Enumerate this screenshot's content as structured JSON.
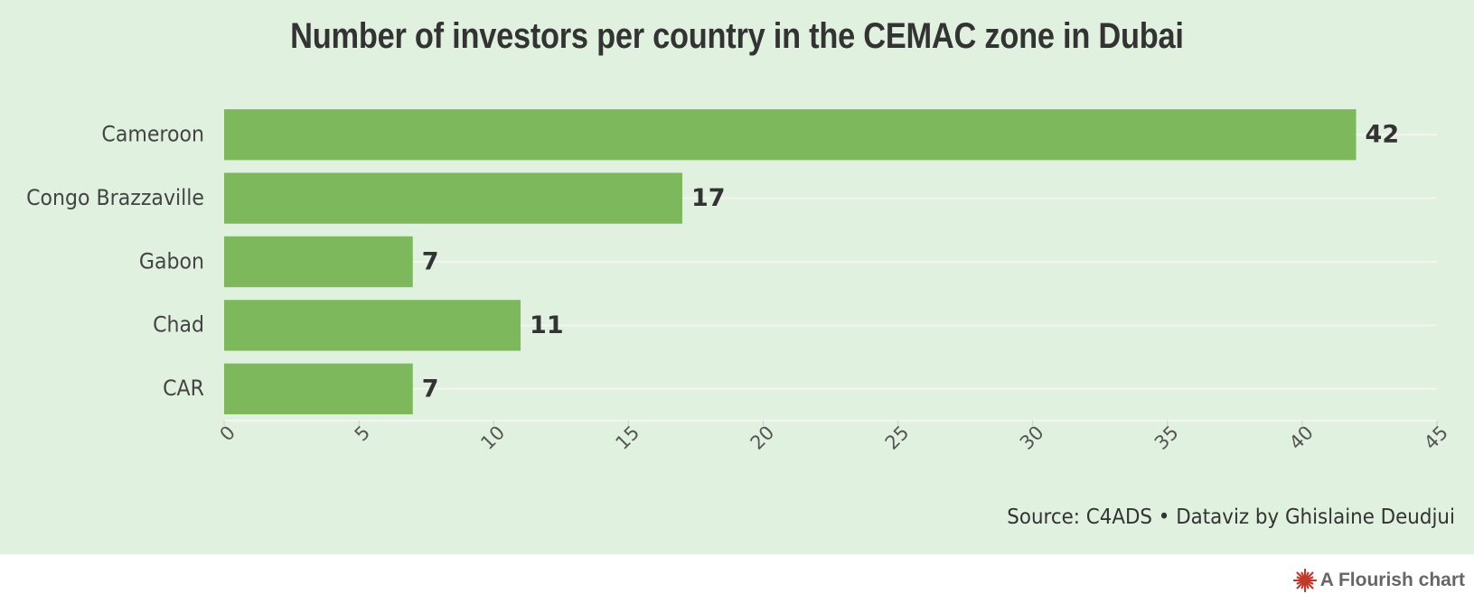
{
  "chart_data": {
    "type": "bar",
    "orientation": "horizontal",
    "title": "Number of investors per country in the CEMAC zone in Dubai",
    "categories": [
      "Cameroon",
      "Congo Brazzaville",
      "Gabon",
      "Chad",
      "CAR"
    ],
    "values": [
      42,
      17,
      7,
      11,
      7
    ],
    "xlim": [
      0,
      45
    ],
    "xticks": [
      0,
      5,
      10,
      15,
      20,
      25,
      30,
      35,
      40,
      45
    ],
    "xlabel": "",
    "ylabel": "",
    "grid": true,
    "legend": "none",
    "bar_color": "#7db85c",
    "background_color": "#e1f1df",
    "grid_color": "#f4f4f2",
    "text_color": "#333333"
  },
  "footer": {
    "source": "Source: C4ADS • Dataviz by Ghislaine Deudjui"
  },
  "branding": {
    "label": "A Flourish chart",
    "icon": "flourish-logo-icon",
    "icon_color": "#c0392b"
  }
}
